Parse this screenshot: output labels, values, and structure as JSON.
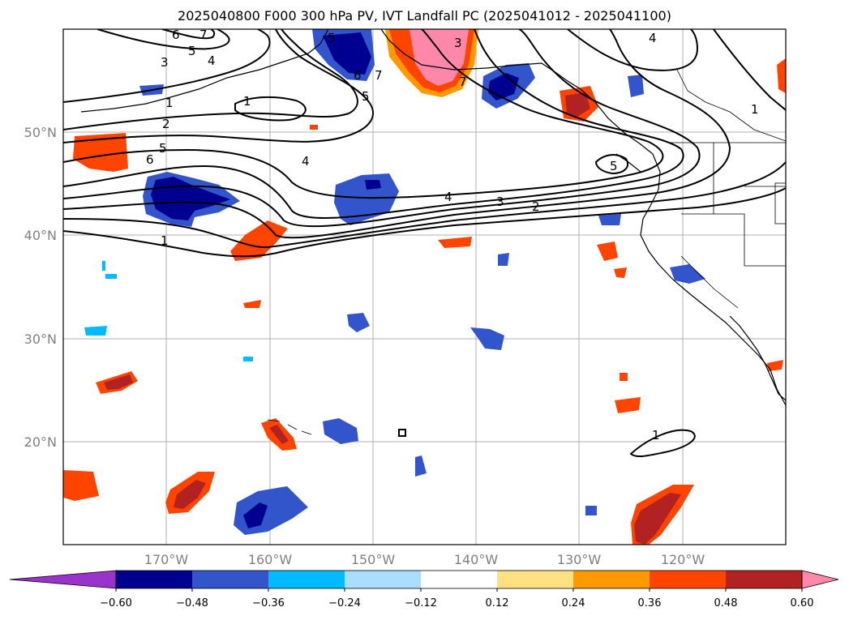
{
  "title": "2025040800 F000 300 hPa PV, IVT Landfall PC (2025041012 - 2025041100)",
  "lat_labels": [
    "50°N",
    "40°N",
    "30°N",
    "20°N"
  ],
  "lon_labels": [
    "170°W",
    "160°W",
    "150°W",
    "140°W",
    "130°W",
    "120°W"
  ],
  "colorbar": {
    "ticks": [
      "−0.60",
      "−0.48",
      "−0.36",
      "−0.24",
      "−0.12",
      "0.12",
      "0.24",
      "0.36",
      "0.48",
      "0.60"
    ],
    "colors": [
      "#9933cc",
      "#000090",
      "#3355cc",
      "#00bbff",
      "#aaddff",
      "#ffffff",
      "#ffe080",
      "#ff9900",
      "#ff4400",
      "#b22222",
      "#ff88aa"
    ]
  },
  "contour_labels": [
    "6",
    "7",
    "5",
    "4",
    "3",
    "1",
    "2",
    "5",
    "6",
    "4",
    "1",
    "5",
    "7",
    "6",
    "5",
    "3",
    "7",
    "4",
    "3",
    "2",
    "1",
    "5",
    "4",
    "1"
  ]
}
